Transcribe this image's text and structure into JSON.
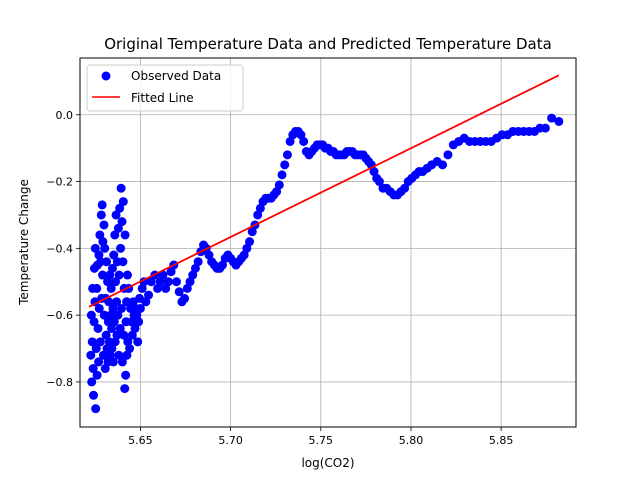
{
  "chart_data": {
    "type": "scatter",
    "title": "Original Temperature Data and Predicted Temperature Data",
    "xlabel": "log(CO2)",
    "ylabel": "Temperature Change",
    "xlim": [
      5.6165,
      5.8915
    ],
    "ylim": [
      -0.935,
      0.17
    ],
    "x_ticks": [
      5.65,
      5.7,
      5.75,
      5.8,
      5.85
    ],
    "x_tick_labels": [
      "5.65",
      "5.70",
      "5.75",
      "5.80",
      "5.85"
    ],
    "y_ticks": [
      -0.8,
      -0.6,
      -0.4,
      -0.2,
      0.0
    ],
    "y_tick_labels": [
      "−0.8",
      "−0.6",
      "−0.4",
      "−0.2",
      "0.0"
    ],
    "grid": true,
    "legend_position": "top-left",
    "series": [
      {
        "name": "Observed Data",
        "kind": "scatter",
        "color": "#0000ff",
        "points": [
          [
            5.6225,
            -0.72
          ],
          [
            5.6228,
            -0.6
          ],
          [
            5.623,
            -0.8
          ],
          [
            5.6233,
            -0.68
          ],
          [
            5.6235,
            -0.52
          ],
          [
            5.6238,
            -0.76
          ],
          [
            5.624,
            -0.84
          ],
          [
            5.6243,
            -0.62
          ],
          [
            5.6245,
            -0.46
          ],
          [
            5.6248,
            -0.56
          ],
          [
            5.625,
            -0.4
          ],
          [
            5.6252,
            -0.88
          ],
          [
            5.6255,
            -0.7
          ],
          [
            5.6258,
            -0.52
          ],
          [
            5.626,
            -0.78
          ],
          [
            5.6262,
            -0.45
          ],
          [
            5.6265,
            -0.64
          ],
          [
            5.6268,
            -0.74
          ],
          [
            5.627,
            -0.42
          ],
          [
            5.6272,
            -0.58
          ],
          [
            5.6275,
            -0.36
          ],
          [
            5.6278,
            -0.68
          ],
          [
            5.628,
            -0.44
          ],
          [
            5.6283,
            -0.3
          ],
          [
            5.6285,
            -0.55
          ],
          [
            5.6288,
            -0.27
          ],
          [
            5.629,
            -0.48
          ],
          [
            5.6292,
            -0.38
          ],
          [
            5.6295,
            -0.72
          ],
          [
            5.6298,
            -0.33
          ],
          [
            5.63,
            -0.6
          ],
          [
            5.6302,
            -0.4
          ],
          [
            5.6305,
            -0.76
          ],
          [
            5.6308,
            -0.55
          ],
          [
            5.631,
            -0.66
          ],
          [
            5.6312,
            -0.44
          ],
          [
            5.6315,
            -0.7
          ],
          [
            5.6318,
            -0.5
          ],
          [
            5.632,
            -0.74
          ],
          [
            5.6322,
            -0.62
          ],
          [
            5.6325,
            -0.56
          ],
          [
            5.6328,
            -0.68
          ],
          [
            5.633,
            -0.48
          ],
          [
            5.6332,
            -0.72
          ],
          [
            5.6335,
            -0.6
          ],
          [
            5.6338,
            -0.52
          ],
          [
            5.634,
            -0.64
          ],
          [
            5.6342,
            -0.7
          ],
          [
            5.6345,
            -0.46
          ],
          [
            5.6348,
            -0.58
          ],
          [
            5.635,
            -0.74
          ],
          [
            5.6352,
            -0.42
          ],
          [
            5.6355,
            -0.62
          ],
          [
            5.6358,
            -0.36
          ],
          [
            5.636,
            -0.68
          ],
          [
            5.6362,
            -0.5
          ],
          [
            5.6365,
            -0.3
          ],
          [
            5.6368,
            -0.56
          ],
          [
            5.637,
            -0.66
          ],
          [
            5.6372,
            -0.44
          ],
          [
            5.6375,
            -0.6
          ],
          [
            5.6378,
            -0.34
          ],
          [
            5.638,
            -0.72
          ],
          [
            5.6382,
            -0.48
          ],
          [
            5.6385,
            -0.28
          ],
          [
            5.6388,
            -0.64
          ],
          [
            5.639,
            -0.4
          ],
          [
            5.6393,
            -0.22
          ],
          [
            5.6395,
            -0.58
          ],
          [
            5.6398,
            -0.32
          ],
          [
            5.64,
            -0.74
          ],
          [
            5.6403,
            -0.44
          ],
          [
            5.6405,
            -0.26
          ],
          [
            5.6408,
            -0.66
          ],
          [
            5.641,
            -0.52
          ],
          [
            5.6413,
            -0.82
          ],
          [
            5.6415,
            -0.36
          ],
          [
            5.6418,
            -0.78
          ],
          [
            5.642,
            -0.62
          ],
          [
            5.6423,
            -0.56
          ],
          [
            5.6425,
            -0.72
          ],
          [
            5.6428,
            -0.48
          ],
          [
            5.643,
            -0.68
          ],
          [
            5.6435,
            -0.52
          ],
          [
            5.644,
            -0.7
          ],
          [
            5.6445,
            -0.58
          ],
          [
            5.645,
            -0.62
          ],
          [
            5.6455,
            -0.66
          ],
          [
            5.646,
            -0.56
          ],
          [
            5.6465,
            -0.6
          ],
          [
            5.647,
            -0.64
          ],
          [
            5.6475,
            -0.58
          ],
          [
            5.648,
            -0.6
          ],
          [
            5.6485,
            -0.68
          ],
          [
            5.649,
            -0.62
          ],
          [
            5.6495,
            -0.55
          ],
          [
            5.65,
            -0.58
          ],
          [
            5.651,
            -0.52
          ],
          [
            5.652,
            -0.5
          ],
          [
            5.653,
            -0.56
          ],
          [
            5.6545,
            -0.54
          ],
          [
            5.656,
            -0.5
          ],
          [
            5.658,
            -0.48
          ],
          [
            5.6595,
            -0.52
          ],
          [
            5.661,
            -0.5
          ],
          [
            5.6625,
            -0.48
          ],
          [
            5.664,
            -0.52
          ],
          [
            5.6655,
            -0.5
          ],
          [
            5.667,
            -0.47
          ],
          [
            5.6685,
            -0.45
          ],
          [
            5.67,
            -0.5
          ],
          [
            5.6715,
            -0.53
          ],
          [
            5.673,
            -0.56
          ],
          [
            5.6745,
            -0.55
          ],
          [
            5.676,
            -0.52
          ],
          [
            5.6775,
            -0.5
          ],
          [
            5.679,
            -0.48
          ],
          [
            5.6805,
            -0.46
          ],
          [
            5.682,
            -0.44
          ],
          [
            5.6835,
            -0.41
          ],
          [
            5.685,
            -0.39
          ],
          [
            5.6865,
            -0.4
          ],
          [
            5.688,
            -0.42
          ],
          [
            5.6895,
            -0.44
          ],
          [
            5.691,
            -0.45
          ],
          [
            5.6925,
            -0.46
          ],
          [
            5.694,
            -0.46
          ],
          [
            5.6955,
            -0.45
          ],
          [
            5.697,
            -0.43
          ],
          [
            5.6985,
            -0.42
          ],
          [
            5.7,
            -0.43
          ],
          [
            5.7015,
            -0.44
          ],
          [
            5.703,
            -0.45
          ],
          [
            5.7045,
            -0.44
          ],
          [
            5.706,
            -0.43
          ],
          [
            5.7075,
            -0.42
          ],
          [
            5.709,
            -0.4
          ],
          [
            5.7105,
            -0.38
          ],
          [
            5.712,
            -0.35
          ],
          [
            5.7135,
            -0.33
          ],
          [
            5.715,
            -0.3
          ],
          [
            5.7165,
            -0.28
          ],
          [
            5.718,
            -0.26
          ],
          [
            5.7195,
            -0.25
          ],
          [
            5.721,
            -0.25
          ],
          [
            5.7225,
            -0.25
          ],
          [
            5.724,
            -0.24
          ],
          [
            5.7255,
            -0.23
          ],
          [
            5.727,
            -0.21
          ],
          [
            5.7285,
            -0.18
          ],
          [
            5.73,
            -0.15
          ],
          [
            5.7315,
            -0.12
          ],
          [
            5.733,
            -0.08
          ],
          [
            5.7345,
            -0.06
          ],
          [
            5.736,
            -0.05
          ],
          [
            5.7375,
            -0.05
          ],
          [
            5.739,
            -0.06
          ],
          [
            5.7405,
            -0.08
          ],
          [
            5.742,
            -0.11
          ],
          [
            5.7435,
            -0.12
          ],
          [
            5.745,
            -0.11
          ],
          [
            5.7465,
            -0.1
          ],
          [
            5.748,
            -0.09
          ],
          [
            5.7495,
            -0.09
          ],
          [
            5.751,
            -0.09
          ],
          [
            5.7525,
            -0.1
          ],
          [
            5.754,
            -0.1
          ],
          [
            5.7555,
            -0.11
          ],
          [
            5.757,
            -0.11
          ],
          [
            5.7585,
            -0.12
          ],
          [
            5.76,
            -0.12
          ],
          [
            5.7615,
            -0.12
          ],
          [
            5.763,
            -0.12
          ],
          [
            5.7645,
            -0.11
          ],
          [
            5.766,
            -0.11
          ],
          [
            5.7675,
            -0.11
          ],
          [
            5.769,
            -0.12
          ],
          [
            5.7705,
            -0.12
          ],
          [
            5.772,
            -0.12
          ],
          [
            5.7735,
            -0.12
          ],
          [
            5.775,
            -0.13
          ],
          [
            5.7765,
            -0.14
          ],
          [
            5.778,
            -0.15
          ],
          [
            5.7795,
            -0.17
          ],
          [
            5.781,
            -0.19
          ],
          [
            5.7825,
            -0.2
          ],
          [
            5.7845,
            -0.22
          ],
          [
            5.7865,
            -0.22
          ],
          [
            5.7885,
            -0.23
          ],
          [
            5.7905,
            -0.24
          ],
          [
            5.7925,
            -0.24
          ],
          [
            5.7945,
            -0.23
          ],
          [
            5.7965,
            -0.22
          ],
          [
            5.7985,
            -0.2
          ],
          [
            5.8005,
            -0.19
          ],
          [
            5.8025,
            -0.18
          ],
          [
            5.8045,
            -0.17
          ],
          [
            5.8065,
            -0.17
          ],
          [
            5.809,
            -0.16
          ],
          [
            5.8115,
            -0.15
          ],
          [
            5.8145,
            -0.14
          ],
          [
            5.8175,
            -0.15
          ],
          [
            5.8205,
            -0.12
          ],
          [
            5.8235,
            -0.09
          ],
          [
            5.8265,
            -0.08
          ],
          [
            5.8295,
            -0.07
          ],
          [
            5.8325,
            -0.08
          ],
          [
            5.8355,
            -0.08
          ],
          [
            5.8385,
            -0.08
          ],
          [
            5.8415,
            -0.08
          ],
          [
            5.8445,
            -0.08
          ],
          [
            5.8475,
            -0.07
          ],
          [
            5.8505,
            -0.06
          ],
          [
            5.8535,
            -0.06
          ],
          [
            5.8565,
            -0.05
          ],
          [
            5.8595,
            -0.05
          ],
          [
            5.8625,
            -0.05
          ],
          [
            5.8655,
            -0.05
          ],
          [
            5.8685,
            -0.05
          ],
          [
            5.8715,
            -0.04
          ],
          [
            5.8745,
            -0.04
          ],
          [
            5.878,
            -0.01
          ],
          [
            5.882,
            -0.02
          ]
        ]
      },
      {
        "name": "Fitted Line",
        "kind": "line",
        "color": "#ff0000",
        "points": [
          [
            5.6215,
            -0.575
          ],
          [
            5.882,
            0.118
          ]
        ]
      }
    ]
  }
}
